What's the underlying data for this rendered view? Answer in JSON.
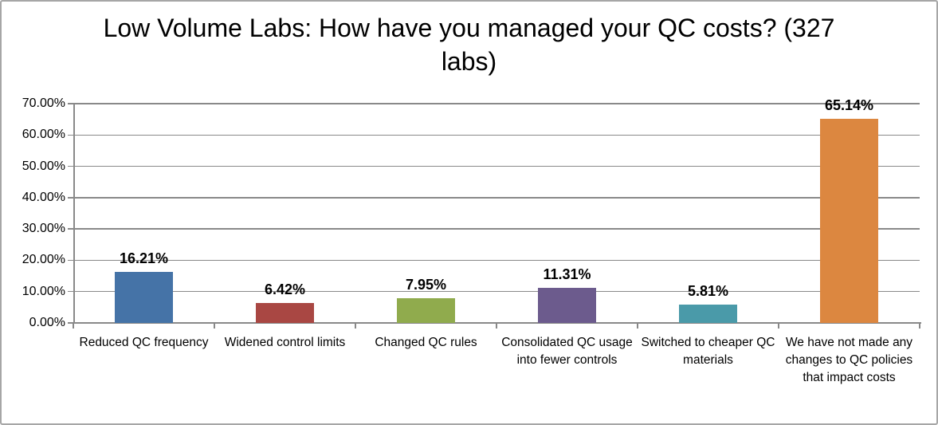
{
  "chart_data": {
    "type": "bar",
    "title": "Low Volume Labs: How have you managed your QC costs? (327 labs)",
    "categories": [
      "Reduced QC frequency",
      "Widened control limits",
      "Changed QC rules",
      "Consolidated QC usage into fewer controls",
      "Switched to cheaper QC materials",
      "We have not made any changes to QC policies that impact costs"
    ],
    "values": [
      16.21,
      6.42,
      7.95,
      11.31,
      5.81,
      65.14
    ],
    "value_labels": [
      "16.21%",
      "6.42%",
      "7.95%",
      "11.31%",
      "5.81%",
      "65.14%"
    ],
    "bar_colors": [
      "#4573a7",
      "#a94743",
      "#90ab4d",
      "#6c5b8d",
      "#4a9aa9",
      "#dc8740"
    ],
    "xlabel": "",
    "ylabel": "",
    "ylim": [
      0,
      70
    ],
    "ytick_step": 10,
    "ytick_labels": [
      "0.00%",
      "10.00%",
      "20.00%",
      "30.00%",
      "40.00%",
      "50.00%",
      "60.00%",
      "70.00%"
    ],
    "grid": true,
    "legend": false
  },
  "style": {
    "grid_color": "#898989",
    "axis_color": "#898989",
    "frame_color": "#a6a6a6",
    "text_color": "#000000"
  }
}
